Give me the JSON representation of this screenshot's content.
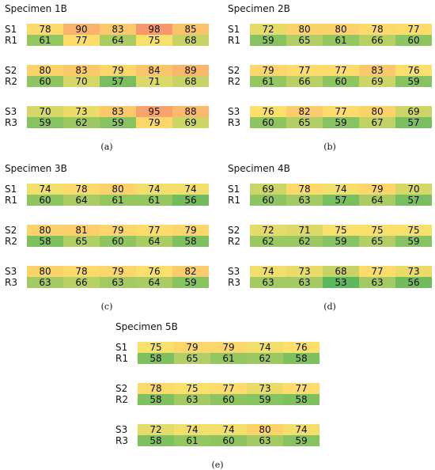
{
  "panels": [
    {
      "title": "Specimen 1B",
      "caption": "(a)",
      "groups": [
        {
          "s_label": "S1",
          "s": [
            78,
            90,
            83,
            98,
            85
          ],
          "r_label": "R1",
          "r": [
            61,
            77,
            64,
            75,
            68
          ]
        },
        {
          "s_label": "S2",
          "s": [
            80,
            83,
            79,
            84,
            89
          ],
          "r_label": "R2",
          "r": [
            60,
            70,
            57,
            71,
            68
          ]
        },
        {
          "s_label": "S3",
          "s": [
            70,
            73,
            83,
            95,
            88
          ],
          "r_label": "R3",
          "r": [
            59,
            62,
            59,
            79,
            69
          ]
        }
      ]
    },
    {
      "title": "Specimen 2B",
      "caption": "(b)",
      "groups": [
        {
          "s_label": "S1",
          "s": [
            72,
            80,
            80,
            78,
            77
          ],
          "r_label": "R1",
          "r": [
            59,
            65,
            61,
            66,
            60
          ]
        },
        {
          "s_label": "S2",
          "s": [
            79,
            77,
            77,
            83,
            76
          ],
          "r_label": "R2",
          "r": [
            61,
            66,
            60,
            69,
            59
          ]
        },
        {
          "s_label": "S3",
          "s": [
            76,
            82,
            77,
            80,
            69
          ],
          "r_label": "R3",
          "r": [
            60,
            65,
            59,
            67,
            57
          ]
        }
      ]
    },
    {
      "title": "Specimen 3B",
      "caption": "(c)",
      "groups": [
        {
          "s_label": "S1",
          "s": [
            74,
            78,
            80,
            74,
            74
          ],
          "r_label": "R1",
          "r": [
            60,
            64,
            61,
            61,
            56
          ]
        },
        {
          "s_label": "S2",
          "s": [
            80,
            81,
            79,
            77,
            79
          ],
          "r_label": "R2",
          "r": [
            58,
            65,
            60,
            64,
            58
          ]
        },
        {
          "s_label": "S3",
          "s": [
            80,
            78,
            79,
            76,
            82
          ],
          "r_label": "R3",
          "r": [
            63,
            66,
            63,
            64,
            59
          ]
        }
      ]
    },
    {
      "title": "Specimen 4B",
      "caption": "(d)",
      "groups": [
        {
          "s_label": "S1",
          "s": [
            69,
            78,
            74,
            79,
            70
          ],
          "r_label": "R1",
          "r": [
            60,
            63,
            57,
            64,
            57
          ]
        },
        {
          "s_label": "S2",
          "s": [
            72,
            71,
            75,
            75,
            75
          ],
          "r_label": "R2",
          "r": [
            62,
            62,
            59,
            65,
            59
          ]
        },
        {
          "s_label": "S3",
          "s": [
            74,
            73,
            68,
            77,
            73
          ],
          "r_label": "R3",
          "r": [
            63,
            63,
            53,
            63,
            56
          ]
        }
      ]
    },
    {
      "title": "Specimen 5B",
      "caption": "(e)",
      "groups": [
        {
          "s_label": "S1",
          "s": [
            75,
            79,
            79,
            74,
            76
          ],
          "r_label": "R1",
          "r": [
            58,
            65,
            61,
            62,
            58
          ]
        },
        {
          "s_label": "S2",
          "s": [
            78,
            75,
            77,
            73,
            77
          ],
          "r_label": "R2",
          "r": [
            58,
            63,
            60,
            59,
            58
          ]
        },
        {
          "s_label": "S3",
          "s": [
            72,
            74,
            74,
            80,
            74
          ],
          "r_label": "R3",
          "r": [
            58,
            61,
            60,
            63,
            59
          ]
        }
      ]
    }
  ],
  "color_scale": {
    "low_value": 53,
    "high_value": 98,
    "low_color": "#5cb85c",
    "mid_color": "#fde16b",
    "high_color": "#f7996c"
  }
}
